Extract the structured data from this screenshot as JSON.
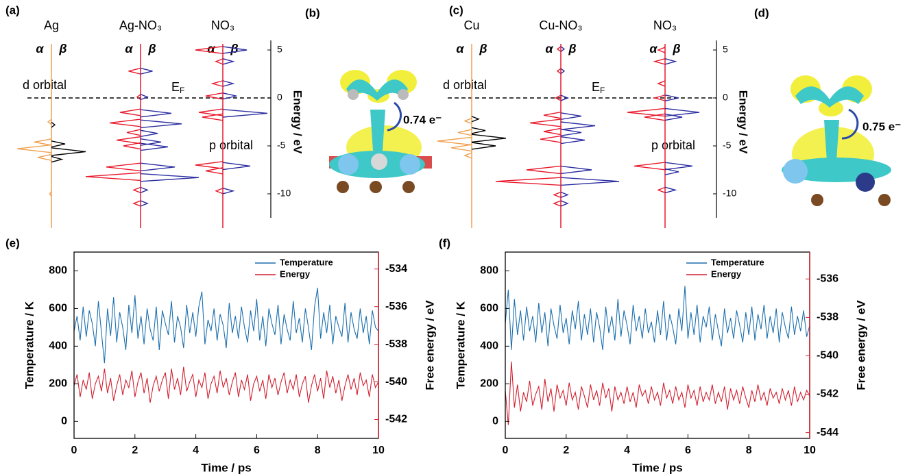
{
  "chart_data": [
    {
      "type": "dos",
      "panel": "(a)",
      "ylabel": "Energy / eV",
      "ylim": [
        -12.5,
        6
      ],
      "yticks": [
        5,
        0,
        -5,
        -10
      ],
      "fermi_energy": 0,
      "fermi_label": {
        "main": "E",
        "sub": "F"
      },
      "annotations": [
        "d orbital",
        "p orbital"
      ],
      "spin_labels": [
        "α",
        "β"
      ],
      "columns": [
        {
          "name": "Ag",
          "alpha": {
            "color": "#f0a050",
            "energies": [
              -2.5,
              -4.6,
              -5.3,
              -6.2,
              -10.0
            ],
            "values": [
              0.1,
              0.5,
              1.0,
              0.4,
              0.05
            ]
          },
          "beta": {
            "color": "#000000",
            "energies": [
              -2.8,
              -4.8,
              -5.6,
              -6.4
            ],
            "values": [
              0.1,
              0.4,
              1.0,
              0.3
            ]
          }
        },
        {
          "name": "Ag-NO₃",
          "alpha": {
            "color": "#e8192c",
            "energies": [
              2.8,
              0.1,
              -1.5,
              -2.6,
              -3.6,
              -4.4,
              -5.0,
              -7.2,
              -8.2,
              -9.6,
              -11.0
            ],
            "values": [
              0.35,
              0.1,
              0.6,
              0.9,
              0.4,
              0.7,
              0.5,
              1.0,
              1.6,
              0.2,
              0.2
            ]
          },
          "beta": {
            "color": "#2b2ea0",
            "energies": [
              2.8,
              0.1,
              -1.6,
              -2.7,
              -3.7,
              -4.6,
              -5.1,
              -7.2,
              -8.3,
              -9.6,
              -11.0
            ],
            "values": [
              0.35,
              0.2,
              0.9,
              1.2,
              0.5,
              0.6,
              0.8,
              1.0,
              1.7,
              0.2,
              0.2
            ]
          }
        },
        {
          "name": "NO₃",
          "alpha": {
            "color": "#e8192c",
            "energies": [
              5.0,
              3.8,
              1.5,
              0.2,
              -1.5,
              -2.0,
              -7.0,
              -7.6,
              -9.7
            ],
            "values": [
              0.8,
              0.2,
              0.3,
              0.5,
              0.7,
              0.6,
              0.8,
              0.5,
              0.2
            ]
          },
          "beta": {
            "color": "#2b2ea0",
            "energies": [
              5.0,
              3.8,
              1.5,
              0.2,
              -1.6,
              -7.1,
              -9.7
            ],
            "values": [
              0.7,
              0.3,
              0.3,
              0.4,
              1.3,
              0.8,
              0.3
            ]
          }
        }
      ]
    },
    {
      "type": "dos",
      "panel": "(c)",
      "ylabel": "Energy / eV",
      "ylim": [
        -12.5,
        6
      ],
      "yticks": [
        5,
        0,
        -5,
        -10
      ],
      "fermi_energy": 0,
      "fermi_label": {
        "main": "E",
        "sub": "F"
      },
      "annotations": [
        "d orbital",
        "p orbital"
      ],
      "spin_labels": [
        "α",
        "β"
      ],
      "columns": [
        {
          "name": "Cu",
          "alpha": {
            "color": "#f0a050",
            "energies": [
              -2.4,
              -3.6,
              -4.5,
              -5.2,
              -6.0
            ],
            "values": [
              0.2,
              0.4,
              1.0,
              0.6,
              0.2
            ]
          },
          "beta": {
            "color": "#000000",
            "energies": [
              -2.2,
              -3.4,
              -4.2,
              -5.0
            ],
            "values": [
              0.2,
              0.4,
              1.0,
              0.7
            ]
          }
        },
        {
          "name": "Cu-NO₃",
          "alpha": {
            "color": "#e8192c",
            "energies": [
              5.1,
              2.8,
              0.0,
              -1.8,
              -2.6,
              -3.5,
              -4.3,
              -7.5,
              -8.7,
              -10.1,
              -11.0
            ],
            "values": [
              0.1,
              0.1,
              0.15,
              0.5,
              0.9,
              0.5,
              0.6,
              1.0,
              1.9,
              0.2,
              0.2
            ]
          },
          "beta": {
            "color": "#2b2ea0",
            "energies": [
              5.1,
              2.8,
              0.0,
              -1.9,
              -2.9,
              -3.6,
              -4.4,
              -7.5,
              -8.7,
              -10.1,
              -11.0
            ],
            "values": [
              0.1,
              0.1,
              0.2,
              0.6,
              1.0,
              0.6,
              0.7,
              0.9,
              1.7,
              0.2,
              0.2
            ]
          }
        },
        {
          "name": "NO₃",
          "alpha": {
            "color": "#e8192c",
            "energies": [
              5.0,
              3.8,
              1.5,
              0.0,
              -1.5,
              -2.0,
              -7.1,
              -9.6
            ],
            "values": [
              0.2,
              0.3,
              0.2,
              0.3,
              1.1,
              0.6,
              0.9,
              0.2
            ]
          },
          "beta": {
            "color": "#2b2ea0",
            "energies": [
              3.8,
              0.0,
              -1.5,
              -2.0,
              -7.1,
              -7.7,
              -9.6
            ],
            "values": [
              0.3,
              0.4,
              1.0,
              0.5,
              0.8,
              0.4,
              0.3
            ]
          }
        }
      ]
    },
    {
      "type": "line",
      "panel": "(e)",
      "xlabel": "Time / ps",
      "ylabel": "Temperature / K",
      "y2label": "Free energy / eV",
      "legend": "upper right",
      "xlim": [
        0,
        10
      ],
      "xticks": [
        0,
        2,
        4,
        6,
        8,
        10
      ],
      "ylim": [
        -90,
        900
      ],
      "yticks": [
        0,
        200,
        400,
        600,
        800
      ],
      "y2lim": [
        -543,
        -533.1
      ],
      "y2ticks": [
        -542,
        -540,
        -538,
        -536,
        -534
      ],
      "x": [
        0,
        0.1,
        0.2,
        0.3,
        0.4,
        0.5,
        0.6,
        0.7,
        0.8,
        0.9,
        1,
        1.1,
        1.2,
        1.3,
        1.4,
        1.5,
        1.6,
        1.7,
        1.8,
        1.9,
        2,
        2.1,
        2.2,
        2.3,
        2.4,
        2.5,
        2.6,
        2.7,
        2.8,
        2.9,
        3,
        3.1,
        3.2,
        3.3,
        3.4,
        3.5,
        3.6,
        3.7,
        3.8,
        3.9,
        4,
        4.1,
        4.2,
        4.3,
        4.4,
        4.5,
        4.6,
        4.7,
        4.8,
        4.9,
        5,
        5.1,
        5.2,
        5.3,
        5.4,
        5.5,
        5.6,
        5.7,
        5.8,
        5.9,
        6,
        6.1,
        6.2,
        6.3,
        6.4,
        6.5,
        6.6,
        6.7,
        6.8,
        6.9,
        7,
        7.1,
        7.2,
        7.3,
        7.4,
        7.5,
        7.6,
        7.7,
        7.8,
        7.9,
        8,
        8.1,
        8.2,
        8.3,
        8.4,
        8.5,
        8.6,
        8.7,
        8.8,
        8.9,
        9,
        9.1,
        9.2,
        9.3,
        9.4,
        9.5,
        9.6,
        9.7,
        9.8,
        9.9,
        10
      ],
      "series": [
        {
          "name": "Temperature",
          "color": "#1b6fae",
          "values": [
            480,
            560,
            430,
            610,
            450,
            590,
            520,
            400,
            640,
            470,
            310,
            600,
            455,
            660,
            420,
            580,
            500,
            380,
            620,
            470,
            670,
            440,
            560,
            410,
            600,
            490,
            430,
            610,
            380,
            590,
            520,
            460,
            640,
            420,
            560,
            500,
            390,
            620,
            470,
            580,
            450,
            610,
            690,
            410,
            540,
            480,
            600,
            430,
            570,
            510,
            390,
            630,
            470,
            560,
            440,
            610,
            500,
            420,
            590,
            480,
            650,
            430,
            560,
            400,
            600,
            520,
            460,
            620,
            410,
            570,
            490,
            430,
            640,
            470,
            550,
            420,
            600,
            500,
            380,
            610,
            710,
            440,
            580,
            470,
            620,
            410,
            560,
            500,
            450,
            630,
            420,
            580,
            490,
            440,
            600,
            470,
            560,
            410,
            590,
            500,
            480
          ]
        },
        {
          "name": "Energy",
          "color": "#d11f2e",
          "axis": "y2",
          "values": [
            -540.2,
            -539.6,
            -540.8,
            -539.9,
            -540.4,
            -539.5,
            -540.9,
            -540.1,
            -539.7,
            -540.5,
            -539.3,
            -540.6,
            -539.8,
            -541.0,
            -540.2,
            -539.6,
            -540.7,
            -539.9,
            -540.3,
            -539.4,
            -540.8,
            -540.0,
            -539.5,
            -540.6,
            -539.8,
            -541.1,
            -540.2,
            -539.7,
            -540.5,
            -539.9,
            -539.5,
            -540.9,
            -539.3,
            -540.4,
            -539.8,
            -540.7,
            -539.2,
            -540.5,
            -540.0,
            -539.6,
            -540.8,
            -539.9,
            -540.3,
            -539.5,
            -540.9,
            -540.1,
            -539.7,
            -540.6,
            -539.4,
            -540.3,
            -539.8,
            -540.7,
            -540.0,
            -539.5,
            -540.8,
            -539.9,
            -540.4,
            -539.6,
            -541.0,
            -540.1,
            -539.7,
            -540.5,
            -539.9,
            -540.9,
            -539.6,
            -540.3,
            -539.8,
            -540.7,
            -540.0,
            -539.5,
            -540.6,
            -539.9,
            -540.4,
            -539.6,
            -540.8,
            -540.1,
            -539.7,
            -541.1,
            -540.2,
            -539.6,
            -540.5,
            -539.8,
            -540.9,
            -539.4,
            -540.3,
            -539.7,
            -540.6,
            -539.9,
            -541.0,
            -540.2,
            -539.6,
            -540.4,
            -539.8,
            -540.7,
            -539.5,
            -540.2,
            -539.9,
            -540.8,
            -539.6,
            -540.3,
            -540.0
          ]
        }
      ]
    },
    {
      "type": "line",
      "panel": "(f)",
      "xlabel": "Time / ps",
      "ylabel": "Temperature / K",
      "y2label": "Free energy / eV",
      "legend": "upper right",
      "xlim": [
        0,
        10
      ],
      "xticks": [
        0,
        2,
        4,
        6,
        8,
        10
      ],
      "ylim": [
        -90,
        900
      ],
      "yticks": [
        0,
        200,
        400,
        600,
        800
      ],
      "y2lim": [
        -544.3,
        -534.6
      ],
      "y2ticks": [
        -544,
        -542,
        -540,
        -538,
        -536
      ],
      "x": [
        0,
        0.1,
        0.2,
        0.3,
        0.4,
        0.5,
        0.6,
        0.7,
        0.8,
        0.9,
        1,
        1.1,
        1.2,
        1.3,
        1.4,
        1.5,
        1.6,
        1.7,
        1.8,
        1.9,
        2,
        2.1,
        2.2,
        2.3,
        2.4,
        2.5,
        2.6,
        2.7,
        2.8,
        2.9,
        3,
        3.1,
        3.2,
        3.3,
        3.4,
        3.5,
        3.6,
        3.7,
        3.8,
        3.9,
        4,
        4.1,
        4.2,
        4.3,
        4.4,
        4.5,
        4.6,
        4.7,
        4.8,
        4.9,
        5,
        5.1,
        5.2,
        5.3,
        5.4,
        5.5,
        5.6,
        5.7,
        5.8,
        5.9,
        6,
        6.1,
        6.2,
        6.3,
        6.4,
        6.5,
        6.6,
        6.7,
        6.8,
        6.9,
        7,
        7.1,
        7.2,
        7.3,
        7.4,
        7.5,
        7.6,
        7.7,
        7.8,
        7.9,
        8,
        8.1,
        8.2,
        8.3,
        8.4,
        8.5,
        8.6,
        8.7,
        8.8,
        8.9,
        9,
        9.1,
        9.2,
        9.3,
        9.4,
        9.5,
        9.6,
        9.7,
        9.8,
        9.9,
        10
      ],
      "series": [
        {
          "name": "Temperature",
          "color": "#1b6fae",
          "values": [
            520,
            700,
            380,
            650,
            460,
            590,
            430,
            610,
            480,
            560,
            420,
            630,
            470,
            580,
            400,
            600,
            510,
            440,
            620,
            470,
            550,
            410,
            590,
            490,
            640,
            430,
            570,
            460,
            600,
            420,
            580,
            500,
            380,
            610,
            470,
            560,
            430,
            650,
            450,
            590,
            510,
            410,
            620,
            480,
            560,
            440,
            600,
            470,
            530,
            420,
            590,
            460,
            640,
            430,
            570,
            500,
            410,
            600,
            480,
            720,
            440,
            580,
            460,
            620,
            420,
            560,
            500,
            610,
            430,
            570,
            480,
            400,
            600,
            470,
            550,
            440,
            590,
            510,
            420,
            580,
            460,
            610,
            430,
            570,
            490,
            620,
            440,
            560,
            470,
            600,
            420,
            580,
            500,
            440,
            610,
            460,
            560,
            480,
            590,
            450,
            510
          ]
        },
        {
          "name": "Energy",
          "color": "#d11f2e",
          "axis": "y2",
          "values": [
            -541.8,
            -543.6,
            -540.3,
            -542.7,
            -541.5,
            -542.9,
            -541.9,
            -542.4,
            -541.3,
            -542.6,
            -542.0,
            -541.6,
            -542.8,
            -541.2,
            -542.4,
            -541.7,
            -542.9,
            -541.5,
            -542.2,
            -541.8,
            -542.6,
            -541.4,
            -542.3,
            -541.9,
            -542.8,
            -541.6,
            -542.1,
            -542.7,
            -541.5,
            -542.3,
            -541.8,
            -542.6,
            -541.4,
            -542.2,
            -541.7,
            -542.9,
            -541.6,
            -542.3,
            -541.9,
            -542.5,
            -541.6,
            -542.4,
            -541.9,
            -542.7,
            -541.5,
            -542.1,
            -541.8,
            -542.5,
            -541.6,
            -542.3,
            -541.9,
            -542.6,
            -541.4,
            -542.2,
            -541.8,
            -542.5,
            -541.6,
            -542.3,
            -541.9,
            -542.7,
            -541.5,
            -542.2,
            -541.8,
            -542.6,
            -541.6,
            -542.4,
            -541.9,
            -542.3,
            -541.5,
            -542.5,
            -541.9,
            -542.4,
            -541.6,
            -542.8,
            -541.7,
            -542.3,
            -541.8,
            -542.5,
            -541.6,
            -542.2,
            -542.7,
            -541.8,
            -542.4,
            -541.5,
            -542.3,
            -541.9,
            -542.6,
            -541.7,
            -542.2,
            -541.9,
            -542.5,
            -541.7,
            -542.3,
            -541.8,
            -542.6,
            -541.6,
            -542.4,
            -541.9,
            -542.3,
            -541.8,
            -542.1
          ]
        }
      ]
    }
  ],
  "images": [
    {
      "panel": "(b)",
      "charge": "0.74 e⁻"
    },
    {
      "panel": "(d)",
      "charge": "0.75 e⁻"
    }
  ]
}
